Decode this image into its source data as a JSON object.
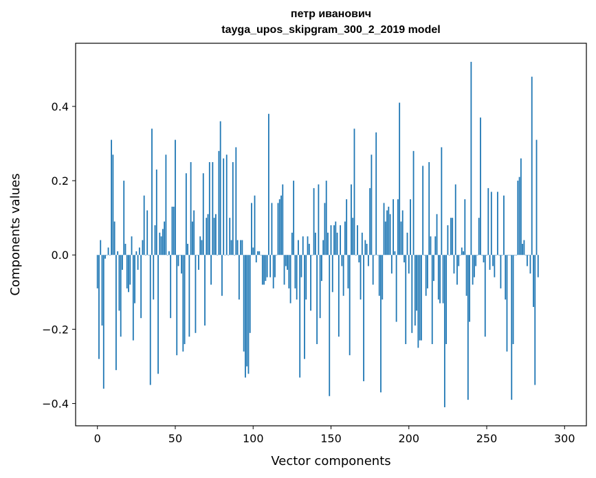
{
  "chart_data": {
    "type": "bar",
    "title": "петр иванович",
    "subtitle": "tayga_upos_skipgram_300_2_2019 model",
    "xlabel": "Vector components",
    "ylabel": "Components values",
    "xlim": [
      -14,
      314
    ],
    "ylim": [
      -0.46,
      0.57
    ],
    "xticks": [
      0,
      50,
      100,
      150,
      200,
      250,
      300
    ],
    "xtick_labels": [
      "0",
      "50",
      "100",
      "150",
      "200",
      "250",
      "300"
    ],
    "yticks": [
      -0.4,
      -0.2,
      0.0,
      0.2,
      0.4
    ],
    "ytick_labels": [
      "−0.4",
      "−0.2",
      "0.0",
      "0.2",
      "0.4"
    ],
    "bar_color": "#1f77b4",
    "grid": false,
    "legend": "none",
    "values": [
      -0.09,
      -0.28,
      0.04,
      -0.19,
      -0.36,
      -0.01,
      0.0,
      0.02,
      0.0,
      0.31,
      0.27,
      0.09,
      -0.31,
      0.01,
      -0.15,
      -0.22,
      -0.04,
      0.2,
      0.03,
      -0.09,
      -0.1,
      -0.08,
      0.05,
      -0.23,
      -0.13,
      0.01,
      -0.04,
      0.02,
      -0.17,
      0.04,
      0.16,
      0.0,
      0.12,
      0.0,
      -0.35,
      0.34,
      -0.12,
      0.08,
      0.23,
      -0.32,
      0.06,
      0.05,
      0.07,
      0.09,
      0.27,
      0.0,
      0.01,
      -0.17,
      0.13,
      0.13,
      0.31,
      -0.27,
      -0.03,
      0.0,
      -0.05,
      -0.26,
      -0.24,
      0.22,
      0.03,
      -0.22,
      0.25,
      0.09,
      0.12,
      -0.21,
      0.0,
      -0.04,
      0.05,
      0.04,
      0.22,
      -0.19,
      0.1,
      0.11,
      0.25,
      -0.08,
      0.25,
      0.1,
      0.11,
      0.0,
      0.28,
      0.36,
      -0.11,
      0.26,
      0.0,
      0.27,
      0.0,
      0.1,
      0.04,
      0.25,
      0.0,
      0.29,
      0.04,
      -0.12,
      0.04,
      0.04,
      -0.26,
      -0.33,
      -0.3,
      -0.32,
      -0.21,
      0.14,
      0.02,
      0.16,
      -0.02,
      0.01,
      0.01,
      0.0,
      -0.08,
      -0.08,
      -0.07,
      -0.06,
      0.38,
      -0.06,
      0.14,
      -0.09,
      -0.06,
      0.0,
      0.14,
      0.15,
      0.16,
      0.19,
      -0.08,
      -0.03,
      -0.04,
      -0.09,
      -0.13,
      0.06,
      0.2,
      -0.09,
      -0.12,
      0.04,
      -0.33,
      -0.06,
      0.05,
      -0.28,
      -0.12,
      0.05,
      0.03,
      -0.15,
      0.0,
      0.18,
      0.06,
      -0.24,
      0.19,
      -0.17,
      -0.07,
      0.04,
      0.14,
      0.2,
      0.06,
      -0.38,
      0.08,
      -0.1,
      0.08,
      0.09,
      0.06,
      -0.22,
      0.08,
      -0.03,
      -0.11,
      0.09,
      0.15,
      -0.09,
      -0.27,
      0.19,
      0.1,
      0.34,
      0.0,
      0.08,
      -0.02,
      -0.12,
      0.06,
      -0.34,
      0.04,
      0.03,
      -0.03,
      0.18,
      0.27,
      -0.08,
      0.0,
      0.33,
      0.0,
      -0.11,
      -0.37,
      -0.12,
      0.14,
      0.09,
      0.12,
      0.13,
      0.11,
      -0.05,
      0.15,
      0.01,
      -0.18,
      0.15,
      0.41,
      0.09,
      0.12,
      -0.02,
      -0.24,
      0.06,
      -0.05,
      0.15,
      -0.21,
      0.28,
      -0.19,
      -0.15,
      -0.25,
      -0.23,
      -0.23,
      0.24,
      0.0,
      -0.11,
      -0.09,
      0.25,
      0.05,
      -0.24,
      -0.07,
      0.05,
      0.11,
      -0.12,
      -0.13,
      0.29,
      -0.13,
      -0.41,
      -0.24,
      0.08,
      0.0,
      0.1,
      0.1,
      -0.05,
      0.19,
      -0.08,
      -0.03,
      0.0,
      0.02,
      0.01,
      0.15,
      -0.11,
      -0.39,
      -0.18,
      0.52,
      -0.08,
      -0.06,
      -0.03,
      0.0,
      0.1,
      0.37,
      0.0,
      -0.02,
      -0.22,
      0.0,
      0.18,
      -0.04,
      0.17,
      -0.03,
      -0.06,
      0.0,
      0.17,
      0.0,
      -0.09,
      0.0,
      0.16,
      -0.12,
      -0.26,
      0.0,
      0.0,
      -0.39,
      -0.24,
      0.0,
      0.0,
      0.2,
      0.21,
      0.26,
      0.03,
      0.04,
      0.0,
      -0.03,
      0.0,
      -0.05,
      0.48,
      -0.14,
      -0.35,
      0.31,
      -0.06
    ]
  }
}
